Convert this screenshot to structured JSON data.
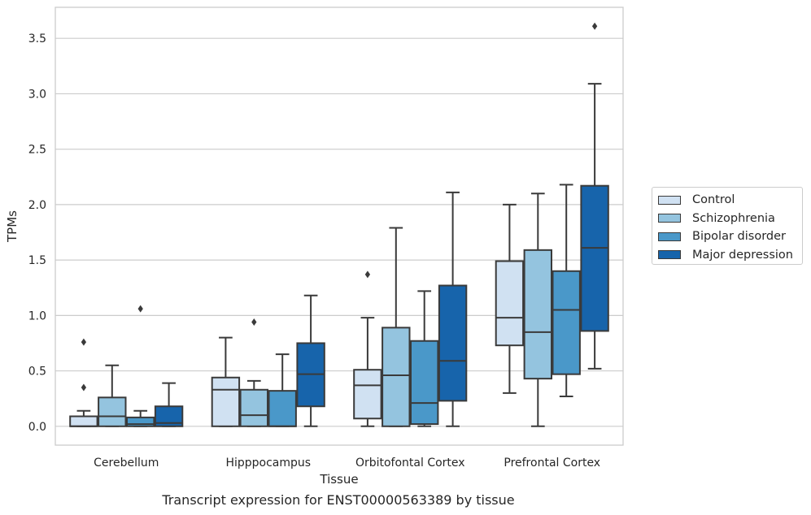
{
  "caption": "Transcript expression for ENST00000563389 by tissue",
  "chart_data": {
    "type": "box",
    "title": "",
    "xlabel": "Tissue",
    "ylabel": "TPMs",
    "ylim": [
      -0.17,
      3.78
    ],
    "yticks": [
      "0.0",
      "0.5",
      "1.0",
      "1.5",
      "2.0",
      "2.5",
      "3.0",
      "3.5"
    ],
    "grid": "horizontal",
    "legend_position": "right",
    "categories": [
      "Cerebellum",
      "Hipppocampus",
      "Orbitofontal Cortex",
      "Prefrontal Cortex"
    ],
    "series": [
      {
        "name": "Control",
        "color": "#d0e1f2",
        "boxes": [
          {
            "whisker_low": 0.0,
            "q1": 0.0,
            "median": 0.0,
            "q3": 0.09,
            "whisker_high": 0.14,
            "outliers": [
              0.35,
              0.76
            ]
          },
          {
            "whisker_low": 0.0,
            "q1": 0.0,
            "median": 0.33,
            "q3": 0.44,
            "whisker_high": 0.8,
            "outliers": []
          },
          {
            "whisker_low": 0.0,
            "q1": 0.07,
            "median": 0.37,
            "q3": 0.51,
            "whisker_high": 0.98,
            "outliers": [
              1.37
            ]
          },
          {
            "whisker_low": 0.3,
            "q1": 0.73,
            "median": 0.98,
            "q3": 1.49,
            "whisker_high": 2.0,
            "outliers": []
          }
        ]
      },
      {
        "name": "Schizophrenia",
        "color": "#94c4df",
        "boxes": [
          {
            "whisker_low": 0.0,
            "q1": 0.0,
            "median": 0.09,
            "q3": 0.26,
            "whisker_high": 0.55,
            "outliers": []
          },
          {
            "whisker_low": 0.0,
            "q1": 0.0,
            "median": 0.1,
            "q3": 0.33,
            "whisker_high": 0.41,
            "outliers": [
              0.94
            ]
          },
          {
            "whisker_low": 0.0,
            "q1": 0.0,
            "median": 0.46,
            "q3": 0.89,
            "whisker_high": 1.79,
            "outliers": []
          },
          {
            "whisker_low": 0.0,
            "q1": 0.43,
            "median": 0.85,
            "q3": 1.59,
            "whisker_high": 2.1,
            "outliers": []
          }
        ]
      },
      {
        "name": "Bipolar disorder",
        "color": "#4a98c9",
        "boxes": [
          {
            "whisker_low": 0.0,
            "q1": 0.0,
            "median": 0.02,
            "q3": 0.08,
            "whisker_high": 0.14,
            "outliers": [
              1.06
            ]
          },
          {
            "whisker_low": 0.0,
            "q1": 0.0,
            "median": 0.0,
            "q3": 0.32,
            "whisker_high": 0.65,
            "outliers": []
          },
          {
            "whisker_low": 0.0,
            "q1": 0.02,
            "median": 0.21,
            "q3": 0.77,
            "whisker_high": 1.22,
            "outliers": []
          },
          {
            "whisker_low": 0.27,
            "q1": 0.47,
            "median": 1.05,
            "q3": 1.4,
            "whisker_high": 2.18,
            "outliers": []
          }
        ]
      },
      {
        "name": "Major depression",
        "color": "#1764ab",
        "boxes": [
          {
            "whisker_low": 0.0,
            "q1": 0.0,
            "median": 0.03,
            "q3": 0.18,
            "whisker_high": 0.39,
            "outliers": []
          },
          {
            "whisker_low": 0.0,
            "q1": 0.18,
            "median": 0.47,
            "q3": 0.75,
            "whisker_high": 1.18,
            "outliers": []
          },
          {
            "whisker_low": 0.0,
            "q1": 0.23,
            "median": 0.59,
            "q3": 1.27,
            "whisker_high": 2.11,
            "outliers": []
          },
          {
            "whisker_low": 0.52,
            "q1": 0.86,
            "median": 1.61,
            "q3": 2.17,
            "whisker_high": 3.09,
            "outliers": [
              3.61
            ]
          }
        ]
      }
    ]
  }
}
